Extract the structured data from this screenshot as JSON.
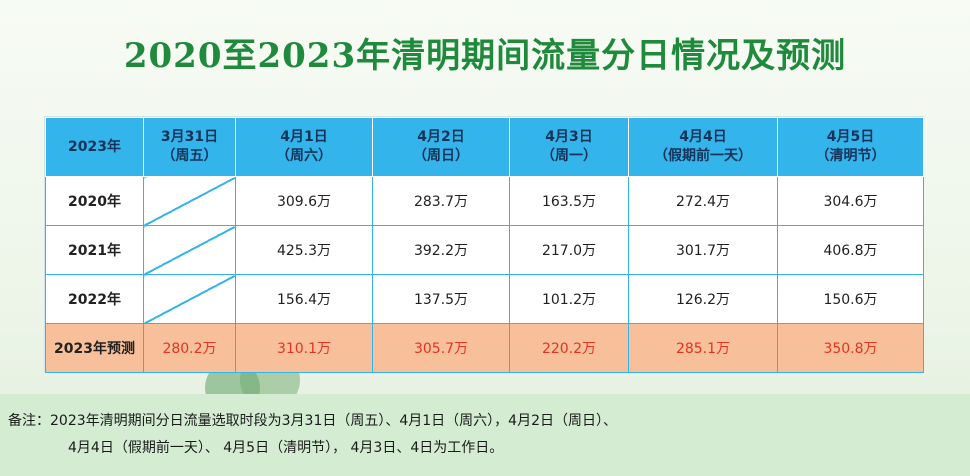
{
  "title": "2020至2023年清明期间流量分日情况及预测",
  "table": {
    "headers": [
      [
        "2023年",
        ""
      ],
      [
        "3月31日",
        "（周五）"
      ],
      [
        "4月1日",
        "（周六）"
      ],
      [
        "4月2日",
        "（周日）"
      ],
      [
        "4月3日",
        "（周一）"
      ],
      [
        "4月4日",
        "（假期前一天）"
      ],
      [
        "4月5日",
        "（清明节）"
      ]
    ],
    "rows": [
      {
        "year": "2020年",
        "values": [
          "",
          "309.6万",
          "283.7万",
          "163.5万",
          "272.4万",
          "304.6万"
        ]
      },
      {
        "year": "2021年",
        "values": [
          "",
          "425.3万",
          "392.2万",
          "217.0万",
          "301.7万",
          "406.8万"
        ]
      },
      {
        "year": "2022年",
        "values": [
          "",
          "156.4万",
          "137.5万",
          "101.2万",
          "126.2万",
          "150.6万"
        ]
      },
      {
        "year": "2023年预测",
        "values": [
          "280.2万",
          "310.1万",
          "305.7万",
          "220.2万",
          "285.1万",
          "350.8万"
        ]
      }
    ]
  },
  "note": {
    "line1": "备注：2023年清明期间分日流量选取时段为3月31日（周五）、4月1日（周六），4月2日（周日）、",
    "line2": "4月4日（假期前一天）、 4月5日（清明节）， 4月3日、4日为工作日。"
  },
  "colors": {
    "title": "#1f8a3b",
    "header_bg": "#33b4ea",
    "forecast_bg": "#f8c09a",
    "forecast_text": "#e53323",
    "note_bg": "#d3ecd2"
  }
}
